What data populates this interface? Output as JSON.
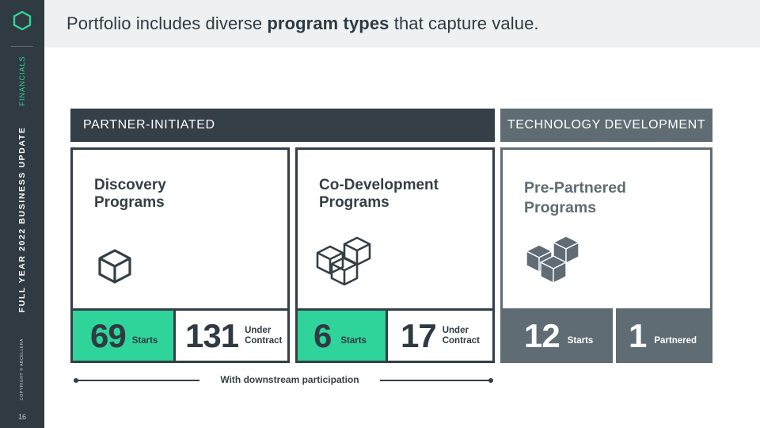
{
  "sidebar": {
    "section": "FINANCIALS",
    "title": "FULL YEAR 2022 BUSINESS UPDATE",
    "copyright": "COPYRIGHT © ABCELLERA",
    "page_number": "16"
  },
  "header": {
    "pre": "Portfolio includes diverse ",
    "bold": "program types",
    "post": " that capture value."
  },
  "categories": {
    "partner": "PARTNER-INITIATED",
    "technology": "TECHNOLOGY DEVELOPMENT"
  },
  "cards": {
    "discovery": {
      "title_line1": "Discovery",
      "title_line2": "Programs",
      "icon": "single-cube-icon",
      "starts_value": "69",
      "starts_label": "Starts",
      "contract_value": "131",
      "contract_line1": "Under",
      "contract_line2": "Contract"
    },
    "codev": {
      "title_line1": "Co-Development",
      "title_line2": "Programs",
      "icon": "cube-stack-outline-icon",
      "starts_value": "6",
      "starts_label": "Starts",
      "contract_value": "17",
      "contract_line1": "Under",
      "contract_line2": "Contract"
    },
    "prepartnered": {
      "title_line1": "Pre-Partnered",
      "title_line2": "Programs",
      "icon": "cube-stack-solid-icon",
      "starts_value": "12",
      "starts_label": "Starts",
      "partnered_value": "1",
      "partnered_label": "Partnered"
    }
  },
  "participation": "With downstream participation",
  "colors": {
    "dark": "#343f47",
    "slate": "#5f6c74",
    "accent_green": "#2fd49a",
    "header_bg": "#eef0f1"
  }
}
